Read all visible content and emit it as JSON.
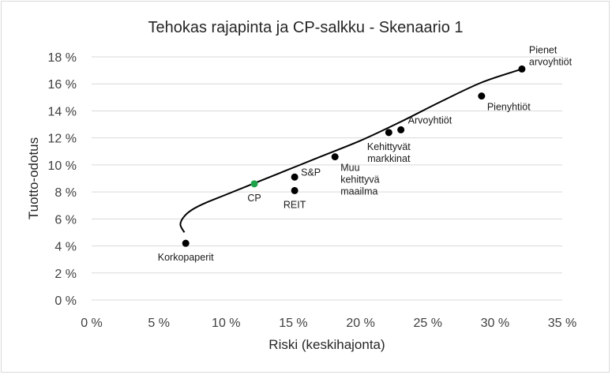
{
  "chart_data": {
    "type": "scatter",
    "title": "Tehokas rajapinta ja CP-salkku - Skenaario 1",
    "xlabel": "Riski (keskihajonta)",
    "ylabel": "Tuotto-odotus",
    "xlim": [
      0,
      35
    ],
    "ylim": [
      0,
      18
    ],
    "x_ticks": [
      0,
      5,
      10,
      15,
      20,
      25,
      30,
      35
    ],
    "y_ticks": [
      0,
      2,
      4,
      6,
      8,
      10,
      12,
      14,
      16,
      18
    ],
    "x_tick_labels": [
      "0 %",
      "5 %",
      "10 %",
      "15 %",
      "20 %",
      "25 %",
      "30 %",
      "35 %"
    ],
    "y_tick_labels": [
      "0 %",
      "2 %",
      "4 %",
      "6 %",
      "8 %",
      "10 %",
      "12 %",
      "14 %",
      "16 %",
      "18 %"
    ],
    "grid": "horizontal",
    "legend": "none",
    "points": [
      {
        "label": "Korkopaperit",
        "x": 7.0,
        "y": 4.2,
        "color": "#000000",
        "anchor": "below"
      },
      {
        "label": "CP",
        "x": 12.1,
        "y": 8.6,
        "color": "#1fa34a",
        "anchor": "below"
      },
      {
        "label": "S&P",
        "x": 15.1,
        "y": 9.1,
        "color": "#000000",
        "anchor": "right"
      },
      {
        "label": "REIT",
        "x": 15.1,
        "y": 8.1,
        "color": "#000000",
        "anchor": "below"
      },
      {
        "label": "Muu kehittyvä maailma",
        "x": 18.1,
        "y": 10.6,
        "color": "#000000",
        "anchor": "below-right"
      },
      {
        "label": "Kehittyvät markkinat",
        "x": 22.1,
        "y": 12.4,
        "color": "#000000",
        "anchor": "below"
      },
      {
        "label": "Arvoyhtiöt",
        "x": 23.0,
        "y": 12.6,
        "color": "#000000",
        "anchor": "upper-right"
      },
      {
        "label": "Pienyhtiöt",
        "x": 29.0,
        "y": 15.1,
        "color": "#000000",
        "anchor": "below-right"
      },
      {
        "label": "Pienet arvoyhtiöt",
        "x": 32.0,
        "y": 17.1,
        "color": "#000000",
        "anchor": "upper-right"
      }
    ],
    "frontier": {
      "x": [
        6.9,
        6.6,
        6.9,
        7.5,
        8.5,
        10.0,
        12.0,
        14.5,
        17.0,
        20.0,
        23.0,
        26.0,
        29.0,
        32.0
      ],
      "y": [
        5.0,
        5.6,
        6.2,
        6.7,
        7.2,
        7.8,
        8.6,
        9.6,
        10.6,
        11.8,
        13.2,
        14.7,
        16.1,
        17.1
      ],
      "color": "#000000"
    },
    "grid_color": "#d9d9d9"
  }
}
